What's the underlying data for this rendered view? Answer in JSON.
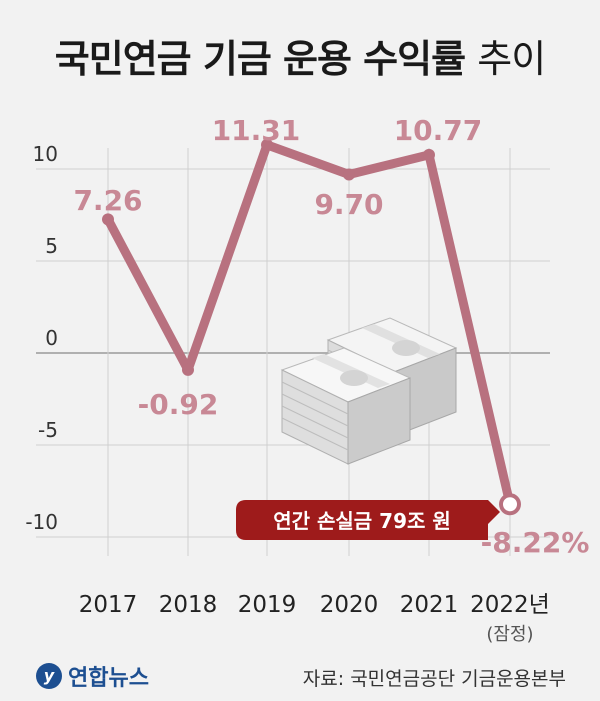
{
  "header": {
    "title_main": "국민연금 기금 운용 수익률",
    "title_sub": "추이"
  },
  "colors": {
    "line": "#b8717f",
    "label": "#c88895",
    "callout_bg": "#9e1b1b",
    "grid": "#d0d0d0",
    "zero": "#999999"
  },
  "chart_data": {
    "type": "line",
    "title": "국민연금 기금 운용 수익률 추이",
    "x": [
      "2017",
      "2018",
      "2019",
      "2020",
      "2021",
      "2022년"
    ],
    "x_sublabels": [
      "",
      "",
      "",
      "",
      "",
      "(잠정)"
    ],
    "series": [
      {
        "values": [
          7.26,
          -0.92,
          11.31,
          9.7,
          10.77,
          -8.22
        ],
        "point_labels": [
          "7.26",
          "-0.92",
          "11.31",
          "9.70",
          "10.77",
          "-8.22%"
        ]
      }
    ],
    "yticks": [
      10,
      5,
      0,
      -5,
      -10
    ],
    "ytick_labels": [
      "10",
      "5",
      "0",
      "-5",
      "-10"
    ],
    "ylim": [
      -12,
      13
    ],
    "grid": true,
    "annotation": "연간 손실금 79조 원"
  },
  "footer": {
    "logo_mark": "y",
    "logo_text": "연합뉴스",
    "source": "자료: 국민연금공단 기금운용본부"
  }
}
